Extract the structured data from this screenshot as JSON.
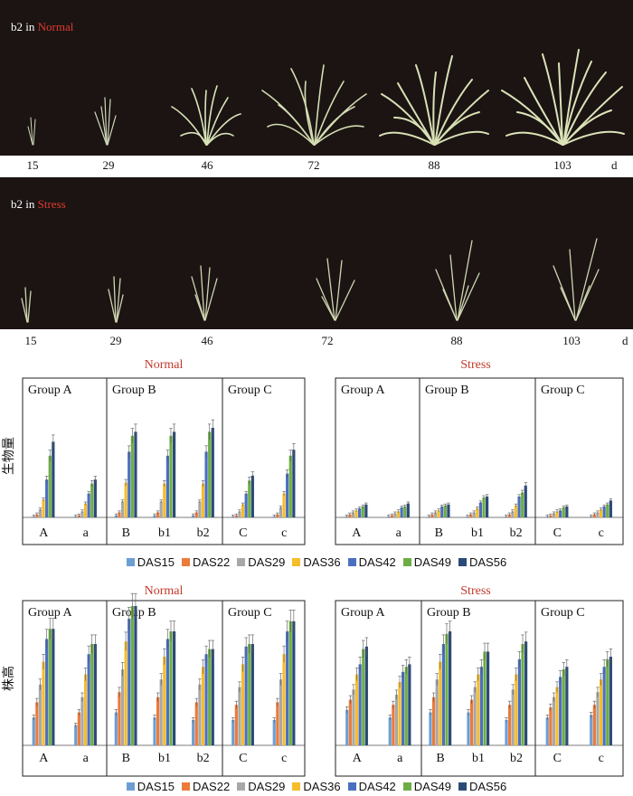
{
  "photos": [
    {
      "title_prefix": "b2 in ",
      "condition": "Normal",
      "days": [
        "15",
        "29",
        "46",
        "72",
        "88",
        "103"
      ],
      "unit": "d"
    },
    {
      "title_prefix": "b2 in ",
      "condition": "Stress",
      "days": [
        "15",
        "29",
        "46",
        "72",
        "88",
        "103"
      ],
      "unit": "d"
    }
  ],
  "legend": [
    "DAS15",
    "DAS22",
    "DAS29",
    "DAS36",
    "DAS42",
    "DAS49",
    "DAS56"
  ],
  "colors": {
    "series": [
      "#6d9ed3",
      "#ec7a3a",
      "#a8a8a8",
      "#f6bd2b",
      "#4b6fc0",
      "#6ead45",
      "#2b4a78"
    ],
    "condition_label": "#c0392b"
  },
  "chart_data": [
    {
      "type": "bar",
      "ylabel": "生物量",
      "ylim": [
        0,
        100
      ],
      "series_names": [
        "DAS15",
        "DAS22",
        "DAS29",
        "DAS36",
        "DAS42",
        "DAS49",
        "DAS56"
      ],
      "panels": [
        {
          "title": "Normal",
          "groups": [
            {
              "label": "Group A",
              "categories": [
                {
                  "name": "A",
                  "values": [
                    1,
                    3,
                    8,
                    18,
                    38,
                    62,
                    76
                  ]
                },
                {
                  "name": "a",
                  "values": [
                    1,
                    2,
                    6,
                    14,
                    24,
                    34,
                    38
                  ]
                }
              ]
            },
            {
              "label": "Group B",
              "categories": [
                {
                  "name": "B",
                  "values": [
                    2,
                    5,
                    16,
                    35,
                    66,
                    82,
                    86
                  ]
                },
                {
                  "name": "b1",
                  "values": [
                    2,
                    5,
                    16,
                    34,
                    62,
                    82,
                    86
                  ]
                },
                {
                  "name": "b2",
                  "values": [
                    2,
                    5,
                    16,
                    34,
                    66,
                    86,
                    90
                  ]
                }
              ]
            },
            {
              "label": "Group C",
              "categories": [
                {
                  "name": "C",
                  "values": [
                    1,
                    2,
                    6,
                    13,
                    24,
                    37,
                    42
                  ]
                },
                {
                  "name": "c",
                  "values": [
                    1,
                    3,
                    10,
                    24,
                    44,
                    62,
                    68
                  ]
                }
              ]
            }
          ]
        },
        {
          "title": "Stress",
          "groups": [
            {
              "label": "Group A",
              "categories": [
                {
                  "name": "A",
                  "values": [
                    1,
                    3,
                    5,
                    7,
                    9,
                    11,
                    13
                  ]
                },
                {
                  "name": "a",
                  "values": [
                    1,
                    2,
                    4,
                    6,
                    10,
                    11,
                    14
                  ]
                }
              ]
            },
            {
              "label": "Group B",
              "categories": [
                {
                  "name": "B",
                  "values": [
                    1,
                    3,
                    5,
                    7,
                    11,
                    12,
                    13
                  ]
                },
                {
                  "name": "b1",
                  "values": [
                    1,
                    3,
                    5,
                    9,
                    15,
                    20,
                    21
                  ]
                },
                {
                  "name": "b2",
                  "values": [
                    1,
                    3,
                    6,
                    12,
                    21,
                    25,
                    32
                  ]
                }
              ]
            },
            {
              "label": "Group C",
              "categories": [
                {
                  "name": "C",
                  "values": [
                    1,
                    2,
                    4,
                    6,
                    7,
                    10,
                    11
                  ]
                },
                {
                  "name": "c",
                  "values": [
                    1,
                    3,
                    5,
                    8,
                    11,
                    13,
                    17
                  ]
                }
              ]
            }
          ]
        }
      ]
    },
    {
      "type": "bar",
      "ylabel": "株高",
      "ylim": [
        0,
        100
      ],
      "series_names": [
        "DAS15",
        "DAS22",
        "DAS29",
        "DAS36",
        "DAS42",
        "DAS49",
        "DAS56"
      ],
      "panels": [
        {
          "title": "Normal",
          "groups": [
            {
              "label": "Group A",
              "categories": [
                {
                  "name": "A",
                  "values": [
                    22,
                    34,
                    48,
                    66,
                    84,
                    92,
                    92
                  ]
                },
                {
                  "name": "a",
                  "values": [
                    16,
                    26,
                    38,
                    56,
                    72,
                    80,
                    80
                  ]
                }
              ]
            },
            {
              "label": "Group B",
              "categories": [
                {
                  "name": "B",
                  "values": [
                    26,
                    42,
                    60,
                    82,
                    100,
                    110,
                    110
                  ]
                },
                {
                  "name": "b1",
                  "values": [
                    22,
                    38,
                    52,
                    70,
                    84,
                    90,
                    90
                  ]
                },
                {
                  "name": "b2",
                  "values": [
                    20,
                    34,
                    48,
                    62,
                    72,
                    76,
                    76
                  ]
                }
              ]
            },
            {
              "label": "Group C",
              "categories": [
                {
                  "name": "C",
                  "values": [
                    20,
                    32,
                    46,
                    64,
                    78,
                    80,
                    80
                  ]
                },
                {
                  "name": "c",
                  "values": [
                    20,
                    34,
                    52,
                    72,
                    90,
                    98,
                    98
                  ]
                }
              ]
            }
          ]
        },
        {
          "title": "Stress",
          "groups": [
            {
              "label": "Group A",
              "categories": [
                {
                  "name": "A",
                  "values": [
                    28,
                    36,
                    44,
                    56,
                    64,
                    76,
                    78
                  ]
                },
                {
                  "name": "a",
                  "values": [
                    22,
                    32,
                    40,
                    50,
                    58,
                    62,
                    64
                  ]
                }
              ]
            },
            {
              "label": "Group B",
              "categories": [
                {
                  "name": "B",
                  "values": [
                    26,
                    38,
                    52,
                    66,
                    80,
                    88,
                    90
                  ]
                },
                {
                  "name": "b1",
                  "values": [
                    26,
                    36,
                    46,
                    56,
                    62,
                    74,
                    74
                  ]
                },
                {
                  "name": "b2",
                  "values": [
                    20,
                    32,
                    44,
                    56,
                    68,
                    80,
                    82
                  ]
                }
              ]
            },
            {
              "label": "Group C",
              "categories": [
                {
                  "name": "C",
                  "values": [
                    22,
                    30,
                    38,
                    46,
                    54,
                    60,
                    62
                  ]
                },
                {
                  "name": "c",
                  "values": [
                    24,
                    32,
                    42,
                    52,
                    62,
                    68,
                    70
                  ]
                }
              ]
            }
          ]
        }
      ]
    }
  ]
}
